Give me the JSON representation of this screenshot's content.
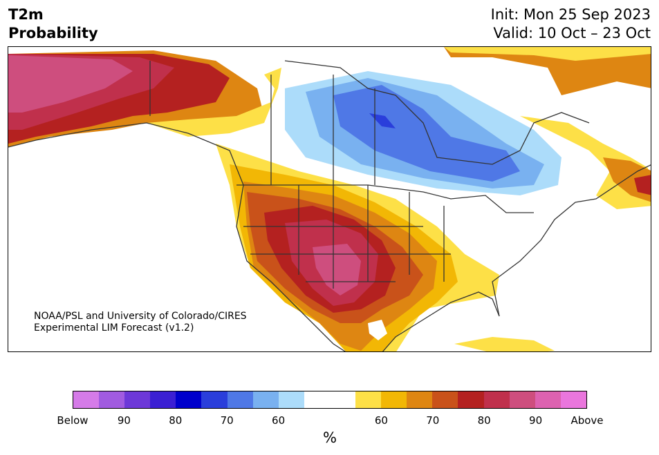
{
  "header": {
    "title_line1": "T2m",
    "title_line2": "Probability",
    "init": "Init: Mon 25 Sep 2023",
    "valid": "Valid: 10 Oct – 23 Oct"
  },
  "map": {
    "credit_line1": "NOAA/PSL and University of Colorado/CIRES",
    "credit_line2": "Experimental LIM Forecast (v1.2)"
  },
  "colorbar": {
    "colors": [
      "#d57be8",
      "#a15be0",
      "#6d38d8",
      "#3b1fd3",
      "#0000cc",
      "#2a3edb",
      "#4f78e6",
      "#79b1f0",
      "#acdcfa",
      "#ffffff",
      "#ffffff",
      "#fde047",
      "#f2b705",
      "#de8612",
      "#c9521a",
      "#b42120",
      "#c0304c",
      "#ce4e7e",
      "#dd62b0",
      "#ea76dd"
    ],
    "ticks": [
      "Below",
      "90",
      "80",
      "70",
      "60",
      "60",
      "70",
      "80",
      "90",
      "Above"
    ],
    "unit": "%"
  }
}
